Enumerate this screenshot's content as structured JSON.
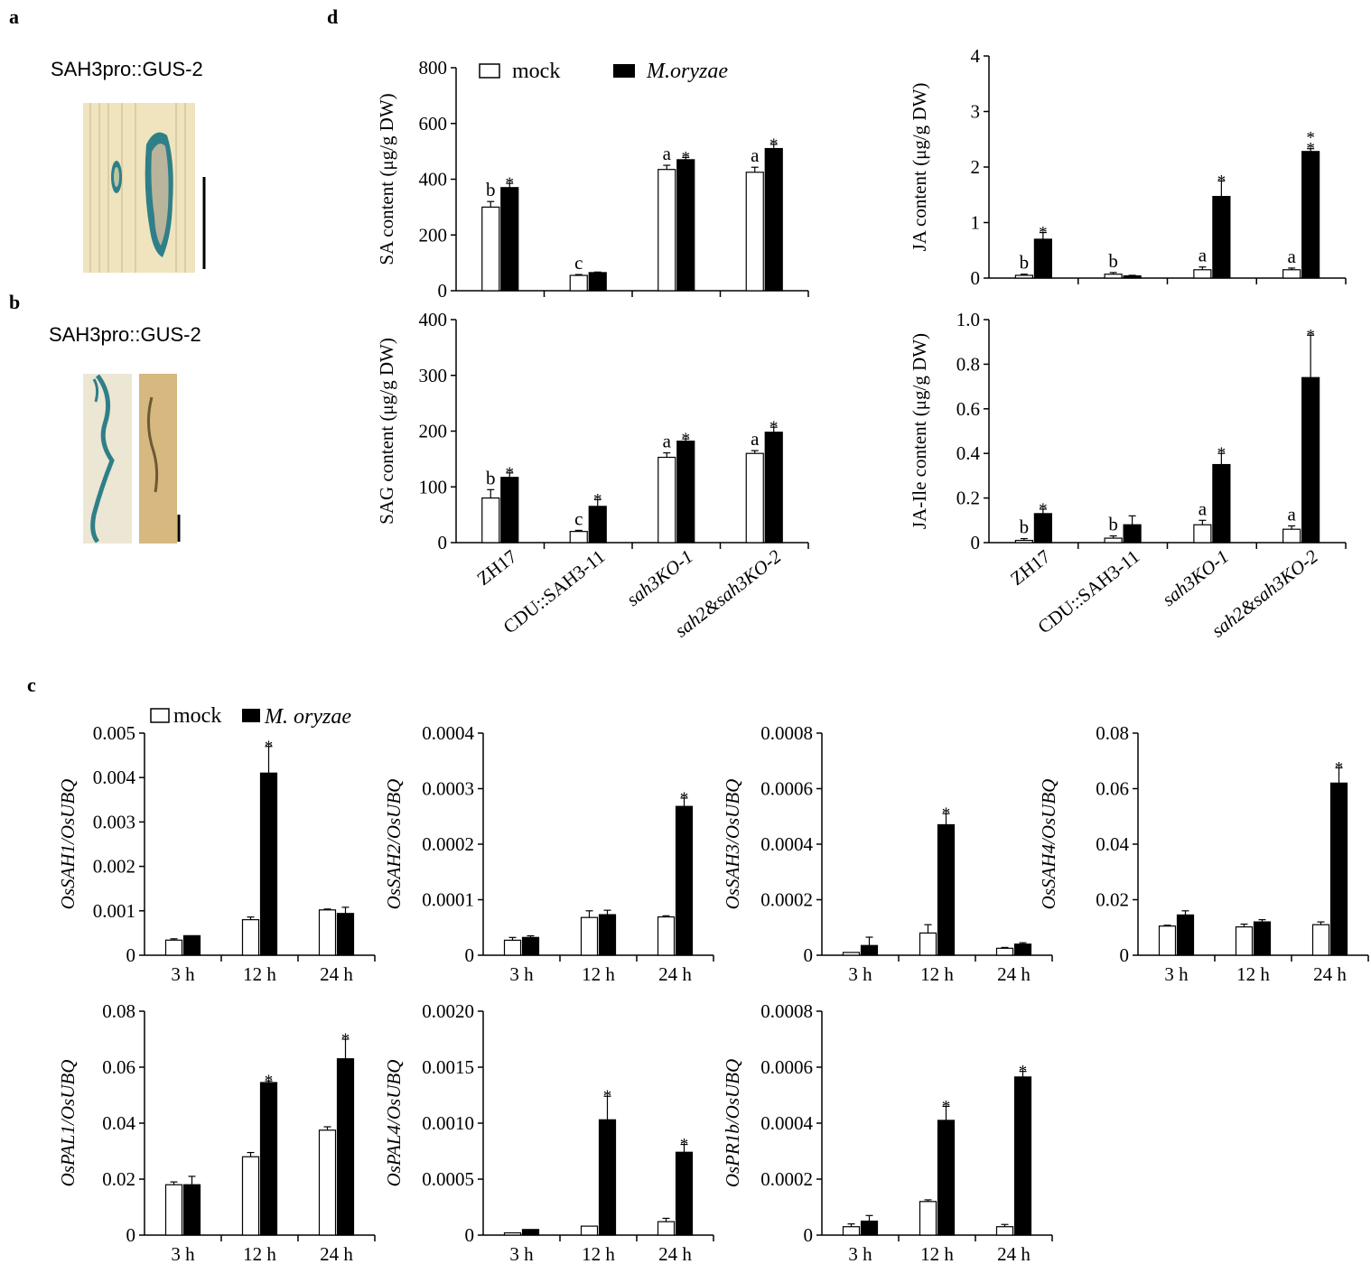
{
  "panel_labels": {
    "a": "a",
    "b": "b",
    "c": "c",
    "d": "d"
  },
  "images": {
    "a_title": "SAH3pro::GUS-2",
    "b_title": "SAH3pro::GUS-2"
  },
  "legend_d": {
    "mock": "mock",
    "treated": "M.oryzae"
  },
  "legend_c": {
    "mock": "mock",
    "treated": "M. oryzae"
  },
  "colors": {
    "mock": "#ffffff",
    "treated": "#000000",
    "axis": "#000000",
    "leaf": "#efe4bd",
    "stain": "#2f7f88",
    "leaf2": "#d6b880"
  },
  "chart_data": [
    {
      "id": "SA",
      "type": "bar",
      "panel": "d",
      "ylabel": "SA content (μg/g DW)",
      "ylim": [
        0,
        800
      ],
      "yticks": [
        "0",
        "200",
        "400",
        "600",
        "800"
      ],
      "categories": [
        "ZH17",
        "CDU::SAH3-11",
        "sah3KO-1",
        "sah2&sah3KO-2"
      ],
      "series": [
        {
          "name": "mock",
          "values": [
            300,
            55,
            435,
            425
          ],
          "err": [
            20,
            3,
            15,
            18
          ]
        },
        {
          "name": "M.oryzae",
          "values": [
            370,
            65,
            470,
            510
          ],
          "err": [
            15,
            2,
            8,
            15
          ]
        }
      ],
      "letters": [
        "b",
        "c",
        "a",
        "a"
      ],
      "stars": [
        "*",
        "",
        "*",
        "*"
      ]
    },
    {
      "id": "JA",
      "type": "bar",
      "panel": "d",
      "ylabel": "JA content (μg/g DW)",
      "ylim": [
        0,
        4
      ],
      "yticks": [
        "0",
        "1",
        "2",
        "3",
        "4"
      ],
      "categories": [
        "ZH17",
        "CDU::SAH3-11",
        "sah3KO-1",
        "sah2&sah3KO-2"
      ],
      "series": [
        {
          "name": "mock",
          "values": [
            0.05,
            0.07,
            0.15,
            0.15
          ],
          "err": [
            0.02,
            0.03,
            0.05,
            0.03
          ]
        },
        {
          "name": "M.oryzae",
          "values": [
            0.7,
            0.04,
            1.47,
            2.28
          ],
          "err": [
            0.12,
            0.01,
            0.28,
            0.05
          ]
        }
      ],
      "letters": [
        "b",
        "b",
        "a",
        "a"
      ],
      "stars": [
        "*",
        "",
        "*",
        "**"
      ]
    },
    {
      "id": "SAG",
      "type": "bar",
      "panel": "d",
      "ylabel": "SAG content (μg/g DW)",
      "ylim": [
        0,
        400
      ],
      "yticks": [
        "0",
        "100",
        "200",
        "300",
        "400"
      ],
      "categories": [
        "ZH17",
        "CDU::SAH3-11",
        "sah3KO-1",
        "sah2&sah3KO-2"
      ],
      "series": [
        {
          "name": "mock",
          "values": [
            80,
            20,
            153,
            160
          ],
          "err": [
            15,
            2,
            8,
            5
          ]
        },
        {
          "name": "M.oryzae",
          "values": [
            117,
            65,
            182,
            198
          ],
          "err": [
            8,
            12,
            4,
            9
          ]
        }
      ],
      "letters": [
        "b",
        "c",
        "a",
        "a"
      ],
      "stars": [
        "*",
        "*",
        "*",
        "*"
      ]
    },
    {
      "id": "JAIle",
      "type": "bar",
      "panel": "d",
      "ylabel": "JA-Ile content (μg/g DW)",
      "ylim": [
        0,
        1.0
      ],
      "yticks": [
        "0",
        "0.2",
        "0.4",
        "0.6",
        "0.8",
        "1.0"
      ],
      "categories": [
        "ZH17",
        "CDU::SAH3-11",
        "sah3KO-1",
        "sah2&sah3KO-2"
      ],
      "series": [
        {
          "name": "mock",
          "values": [
            0.01,
            0.02,
            0.08,
            0.06
          ],
          "err": [
            0.008,
            0.01,
            0.02,
            0.015
          ]
        },
        {
          "name": "M.oryzae",
          "values": [
            0.13,
            0.08,
            0.35,
            0.74
          ],
          "err": [
            0.02,
            0.04,
            0.05,
            0.19
          ]
        }
      ],
      "letters": [
        "b",
        "b",
        "a",
        "a"
      ],
      "stars": [
        "*",
        "",
        "*",
        "*"
      ]
    },
    {
      "id": "SAH1",
      "type": "bar",
      "panel": "c",
      "ylabel": "OsSAH1/OsUBQ",
      "ylim": [
        0,
        0.005
      ],
      "yticks": [
        "0",
        "0.001",
        "0.002",
        "0.003",
        "0.004",
        "0.005"
      ],
      "categories": [
        "3 h",
        "12 h",
        "24 h"
      ],
      "series": [
        {
          "name": "mock",
          "values": [
            0.00034,
            0.0008,
            0.00102
          ],
          "err": [
            3e-05,
            6e-05,
            2e-05
          ]
        },
        {
          "name": "M. oryzae",
          "values": [
            0.00044,
            0.0041,
            0.00094
          ],
          "err": [
            0.0,
            0.0006,
            0.00014
          ]
        }
      ],
      "stars": [
        "",
        "*",
        ""
      ]
    },
    {
      "id": "SAH2",
      "type": "bar",
      "panel": "c",
      "ylabel": "OsSAH2/OsUBQ",
      "ylim": [
        0,
        0.0004
      ],
      "yticks": [
        "0",
        "0.0001",
        "0.0002",
        "0.0003",
        "0.0004"
      ],
      "categories": [
        "3 h",
        "12 h",
        "24 h"
      ],
      "series": [
        {
          "name": "mock",
          "values": [
            2.7e-05,
            6.8e-05,
            6.9e-05
          ],
          "err": [
            5e-06,
            1.2e-05,
            2e-06
          ]
        },
        {
          "name": "M. oryzae",
          "values": [
            3.2e-05,
            7.3e-05,
            0.000268
          ],
          "err": [
            3e-06,
            8e-06,
            1.5e-05
          ]
        }
      ],
      "stars": [
        "",
        "",
        "*"
      ]
    },
    {
      "id": "SAH3",
      "type": "bar",
      "panel": "c",
      "ylabel": "OsSAH3/OsUBQ",
      "ylim": [
        0,
        0.0008
      ],
      "yticks": [
        "0",
        "0.0002",
        "0.0004",
        "0.0006",
        "0.0008"
      ],
      "categories": [
        "3 h",
        "12 h",
        "24 h"
      ],
      "series": [
        {
          "name": "mock",
          "values": [
            1e-05,
            8e-05,
            2.5e-05
          ],
          "err": [
            0.0,
            3e-05,
            3e-06
          ]
        },
        {
          "name": "M. oryzae",
          "values": [
            3.5e-05,
            0.00047,
            4e-05
          ],
          "err": [
            3e-05,
            4e-05,
            5e-06
          ]
        }
      ],
      "stars": [
        "",
        "*",
        ""
      ]
    },
    {
      "id": "SAH4",
      "type": "bar",
      "panel": "c",
      "ylabel": "OsSAH4/OsUBQ",
      "ylim": [
        0,
        0.08
      ],
      "yticks": [
        "0",
        "0.02",
        "0.04",
        "0.06",
        "0.08"
      ],
      "categories": [
        "3 h",
        "12 h",
        "24 h"
      ],
      "series": [
        {
          "name": "mock",
          "values": [
            0.0105,
            0.0102,
            0.011
          ],
          "err": [
            0.0003,
            0.001,
            0.001
          ]
        },
        {
          "name": "M. oryzae",
          "values": [
            0.0145,
            0.012,
            0.062
          ],
          "err": [
            0.0015,
            0.0008,
            0.0055
          ]
        }
      ],
      "stars": [
        "",
        "",
        "*"
      ]
    },
    {
      "id": "PAL1",
      "type": "bar",
      "panel": "c",
      "ylabel": "OsPAL1/OsUBQ",
      "ylim": [
        0,
        0.08
      ],
      "yticks": [
        "0",
        "0.02",
        "0.04",
        "0.06",
        "0.08"
      ],
      "categories": [
        "3 h",
        "12 h",
        "24 h"
      ],
      "series": [
        {
          "name": "mock",
          "values": [
            0.018,
            0.028,
            0.0375
          ],
          "err": [
            0.001,
            0.0015,
            0.0012
          ]
        },
        {
          "name": "M. oryzae",
          "values": [
            0.018,
            0.0545,
            0.063
          ],
          "err": [
            0.003,
            0.0006,
            0.007
          ]
        }
      ],
      "stars": [
        "",
        "*",
        "*"
      ]
    },
    {
      "id": "PAL4",
      "type": "bar",
      "panel": "c",
      "ylabel": "OsPAL4/OsUBQ",
      "ylim": [
        0,
        0.002
      ],
      "yticks": [
        "0",
        "0.0005",
        "0.0010",
        "0.0015",
        "0.0020"
      ],
      "categories": [
        "3 h",
        "12 h",
        "24 h"
      ],
      "series": [
        {
          "name": "mock",
          "values": [
            2e-05,
            8e-05,
            0.00012
          ],
          "err": [
            0.0,
            0.0,
            3e-05
          ]
        },
        {
          "name": "M. oryzae",
          "values": [
            5e-05,
            0.00103,
            0.00074
          ],
          "err": [
            0.0,
            0.00021,
            7e-05
          ]
        }
      ],
      "stars": [
        "",
        "*",
        "*"
      ]
    },
    {
      "id": "PR1b",
      "type": "bar",
      "panel": "c",
      "ylabel": "OsPR1b/OsUBQ",
      "ylim": [
        0,
        0.0008
      ],
      "yticks": [
        "0",
        "0.0002",
        "0.0004",
        "0.0006",
        "0.0008"
      ],
      "categories": [
        "3 h",
        "12 h",
        "24 h"
      ],
      "series": [
        {
          "name": "mock",
          "values": [
            3e-05,
            0.00012,
            3e-05
          ],
          "err": [
            1e-05,
            6e-06,
            8e-06
          ]
        },
        {
          "name": "M. oryzae",
          "values": [
            5e-05,
            0.00041,
            0.000565
          ],
          "err": [
            2e-05,
            5e-05,
            2e-05
          ]
        }
      ],
      "stars": [
        "",
        "*",
        "*"
      ]
    }
  ]
}
